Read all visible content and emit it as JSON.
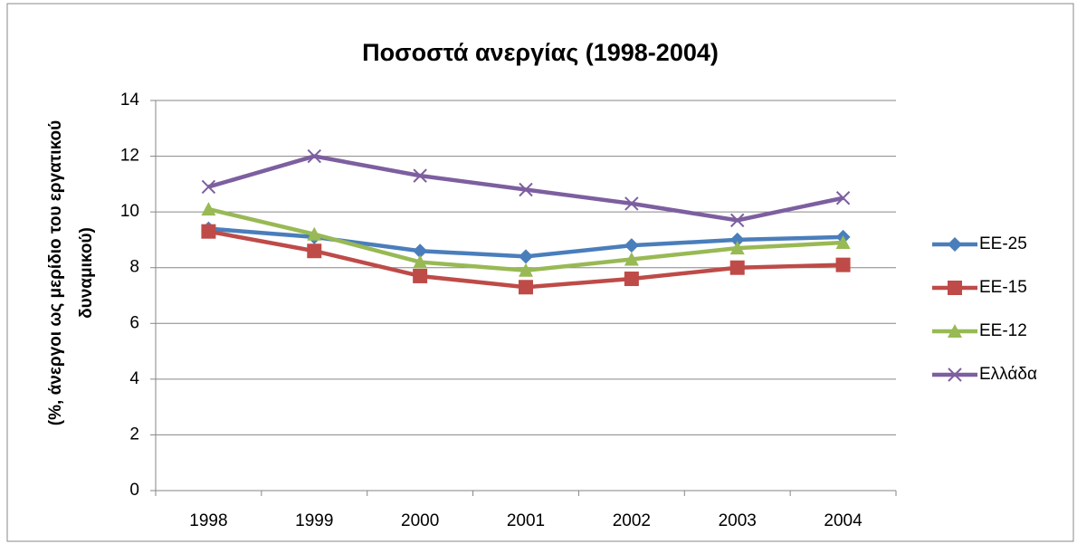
{
  "chart_data": {
    "type": "line",
    "title": "Ποσοστά ανεργίας (1998-2004)",
    "y_label": [
      "(%, άνεργοι ως μερίδιο του εργατικού",
      "δυναμικού)"
    ],
    "categories": [
      "1998",
      "1999",
      "2000",
      "2001",
      "2002",
      "2003",
      "2004"
    ],
    "series": [
      {
        "name": "EE-25",
        "color": "#4a7ebb",
        "marker": "diamond",
        "values": [
          9.4,
          9.1,
          8.6,
          8.4,
          8.8,
          9.0,
          9.1
        ]
      },
      {
        "name": "EE-15",
        "color": "#be4b48",
        "marker": "square",
        "values": [
          9.3,
          8.6,
          7.7,
          7.3,
          7.6,
          8.0,
          8.1
        ]
      },
      {
        "name": "EE-12",
        "color": "#98b954",
        "marker": "triangle",
        "values": [
          10.1,
          9.2,
          8.2,
          7.9,
          8.3,
          8.7,
          8.9
        ]
      },
      {
        "name": "Ελλάδα",
        "color": "#7d5fa0",
        "marker": "x",
        "values": [
          10.9,
          12.0,
          11.3,
          10.8,
          10.3,
          9.7,
          10.5
        ]
      }
    ],
    "ylim": [
      0,
      14
    ],
    "yticks": [
      0,
      2,
      4,
      6,
      8,
      10,
      12,
      14
    ],
    "grid": true,
    "legend": "right"
  }
}
